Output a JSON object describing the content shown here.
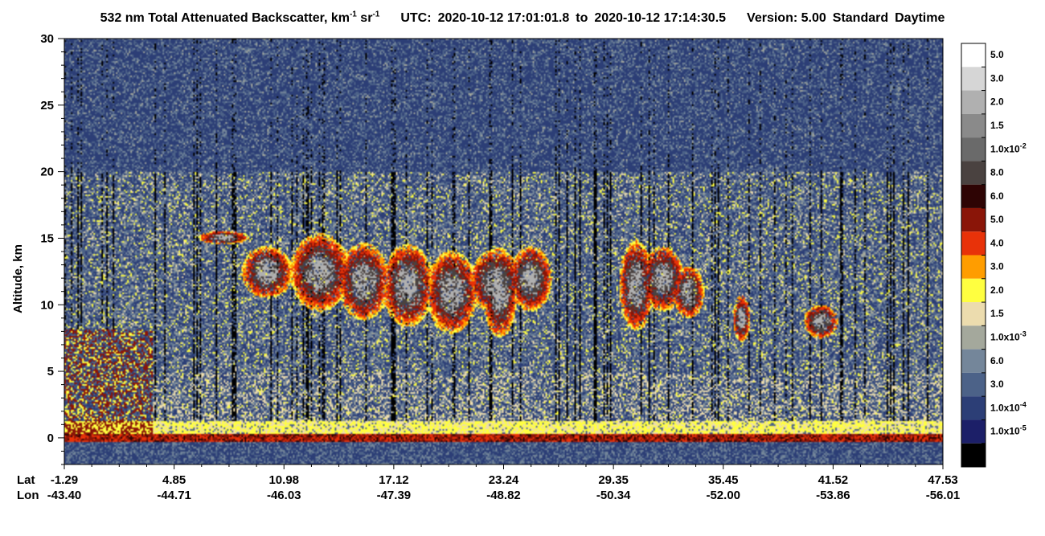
{
  "title": {
    "quantity": "532 nm Total Attenuated Backscatter, km",
    "exp1": "-1",
    "unit_sr": " sr",
    "exp2": "-1",
    "utc_label": "UTC:",
    "start": "2020-10-12 17:01:01.8",
    "to": "to",
    "end": "2020-10-12 17:14:30.5",
    "version": "Version: 5.00",
    "product": "Standard",
    "daytime": "Daytime"
  },
  "chart_data": {
    "type": "heatmap",
    "title": "532 nm Total Attenuated Backscatter, km-1 sr-1",
    "ylabel": "Altitude, km",
    "ylim": [
      -2,
      30
    ],
    "y_ticks": [
      "30",
      "25",
      "20",
      "15",
      "10",
      "5",
      "0"
    ],
    "x_row_labels": [
      "Lat",
      "Lon"
    ],
    "lat": [
      "-1.29",
      "4.85",
      "10.98",
      "17.12",
      "23.24",
      "29.35",
      "35.45",
      "41.52",
      "47.53"
    ],
    "lon": [
      "-43.40",
      "-44.71",
      "-46.03",
      "-47.39",
      "-48.82",
      "-50.34",
      "-52.00",
      "-53.86",
      "-56.01"
    ],
    "colorbar": {
      "bins": [
        {
          "color": "#ffffff",
          "label": "5.0"
        },
        {
          "color": "#d6d6d6",
          "label": "3.0"
        },
        {
          "color": "#b0b0b0",
          "label": "2.0"
        },
        {
          "color": "#8a8a8a",
          "label": "1.5"
        },
        {
          "color": "#6a6a6a",
          "label": "1.0x10",
          "exp": "-2"
        },
        {
          "color": "#4a4240",
          "label": "8.0"
        },
        {
          "color": "#2e0404",
          "label": "6.0"
        },
        {
          "color": "#8a1508",
          "label": "5.0"
        },
        {
          "color": "#e83209",
          "label": "4.0"
        },
        {
          "color": "#ff9d00",
          "label": "3.0"
        },
        {
          "color": "#ffff40",
          "label": "2.0"
        },
        {
          "color": "#ecdcae",
          "label": "1.5"
        },
        {
          "color": "#a4a89c",
          "label": "1.0x10",
          "exp": "-3"
        },
        {
          "color": "#74869a",
          "label": "6.0"
        },
        {
          "color": "#4c6288",
          "label": "3.0"
        },
        {
          "color": "#2c3e76",
          "label": "1.0x10",
          "exp": "-4"
        },
        {
          "color": "#1c1f68",
          "label": "1.0x10",
          "exp": "-5"
        },
        {
          "color": "#000000",
          "label": ""
        }
      ]
    },
    "features": {
      "cirrus_top_km": 15.5,
      "cirrus_base_km": 7,
      "surface_km": 0,
      "noise_boundary_km": 20
    }
  }
}
